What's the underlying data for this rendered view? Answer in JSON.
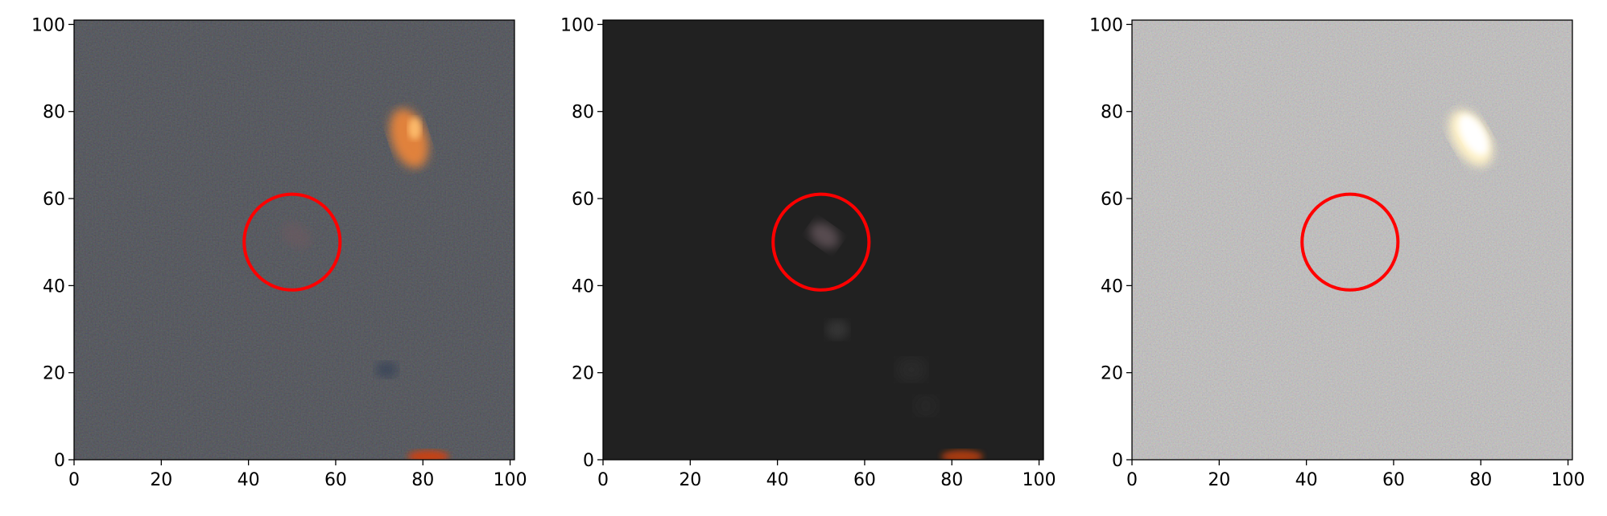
{
  "colors": {
    "marker_circle": "#ff0000",
    "panel_1_bg": "#1a1a1a",
    "panel_2_bg": "#212121",
    "panel_3_bg": "#8d8d8b",
    "orange_source": "#e8843a",
    "bright_source": "#fff2c8"
  },
  "panels": [
    {
      "description": "colour cutout with faint target and bright orange source",
      "xlim": [
        0,
        101
      ],
      "ylim": [
        0,
        101
      ],
      "xticks": [
        "0",
        "20",
        "40",
        "60",
        "80",
        "100"
      ],
      "yticks": [
        "0",
        "20",
        "40",
        "60",
        "80",
        "100"
      ],
      "circle": {
        "cx": 50,
        "cy": 50,
        "r": 11
      }
    },
    {
      "description": "model image with target only",
      "xlim": [
        0,
        101
      ],
      "ylim": [
        0,
        101
      ],
      "xticks": [
        "0",
        "20",
        "40",
        "60",
        "80",
        "100"
      ],
      "yticks": [
        "0",
        "20",
        "40",
        "60",
        "80",
        "100"
      ],
      "circle": {
        "cx": 50,
        "cy": 50,
        "r": 11
      }
    },
    {
      "description": "residual image",
      "xlim": [
        0,
        101
      ],
      "ylim": [
        0,
        101
      ],
      "xticks": [
        "0",
        "20",
        "40",
        "60",
        "80",
        "100"
      ],
      "yticks": [
        "0",
        "20",
        "40",
        "60",
        "80",
        "100"
      ],
      "circle": {
        "cx": 50,
        "cy": 50,
        "r": 11
      }
    }
  ]
}
